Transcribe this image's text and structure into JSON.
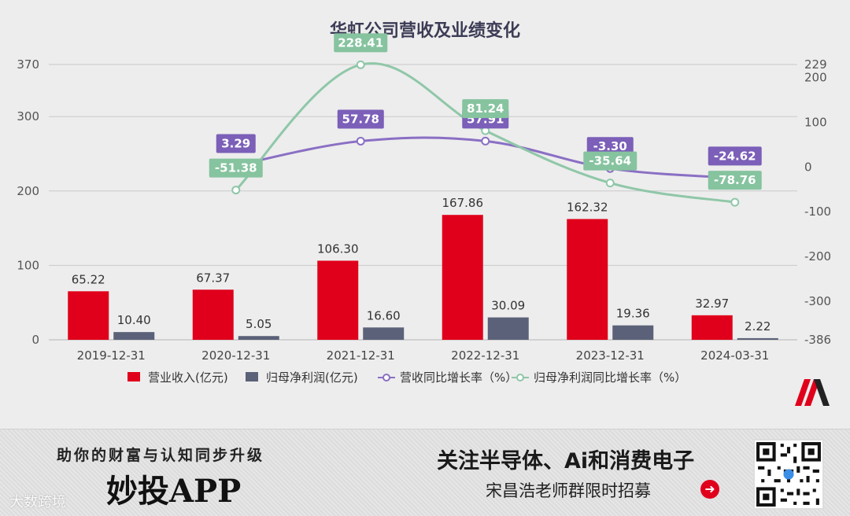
{
  "chart_data": {
    "type": "bar+line",
    "title": "华虹公司营收及业绩变化",
    "categories": [
      "2019-12-31",
      "2020-12-31",
      "2021-12-31",
      "2022-12-31",
      "2023-12-31",
      "2024-03-31"
    ],
    "series": [
      {
        "name": "营业收入(亿元)",
        "type": "bar",
        "axis": "left",
        "color": "#e0001b",
        "values": [
          65.22,
          67.37,
          106.3,
          167.86,
          162.32,
          32.97
        ]
      },
      {
        "name": "归母净利润(亿元)",
        "type": "bar",
        "axis": "left",
        "color": "#5b6178",
        "values": [
          10.4,
          5.05,
          16.6,
          30.09,
          19.36,
          2.22
        ]
      },
      {
        "name": "营收同比增长率（%）",
        "type": "line",
        "axis": "right",
        "color": "#8a6fc4",
        "label_bg": "#7b5fb8",
        "values": [
          null,
          3.29,
          57.78,
          57.91,
          -3.3,
          -24.62
        ]
      },
      {
        "name": "归母净利润同比增长率（%）",
        "type": "line",
        "axis": "right",
        "color": "#8fc7a8",
        "label_bg": "#86c39f",
        "values": [
          null,
          -51.38,
          228.41,
          81.24,
          -35.64,
          -78.76
        ]
      }
    ],
    "y_left": {
      "min": 0,
      "max": 370,
      "ticks": [
        0,
        100,
        200,
        300,
        370
      ]
    },
    "y_right": {
      "min": -386,
      "max": 229,
      "ticks": [
        -386,
        -300,
        -200,
        -100,
        0,
        100,
        200,
        229
      ]
    },
    "grid": true,
    "legend_position": "bottom"
  },
  "footer": {
    "slogan_small": "助你的财富与认知同步升级",
    "app_name": "妙投APP",
    "watermark": "大数跨境",
    "promo_main": "关注半导体、Ai和消费电子",
    "promo_sub": "宋昌浩老师群限时招募",
    "arrow": "➜"
  },
  "colors": {
    "accent": "#e0001b",
    "background": "#ededed"
  }
}
